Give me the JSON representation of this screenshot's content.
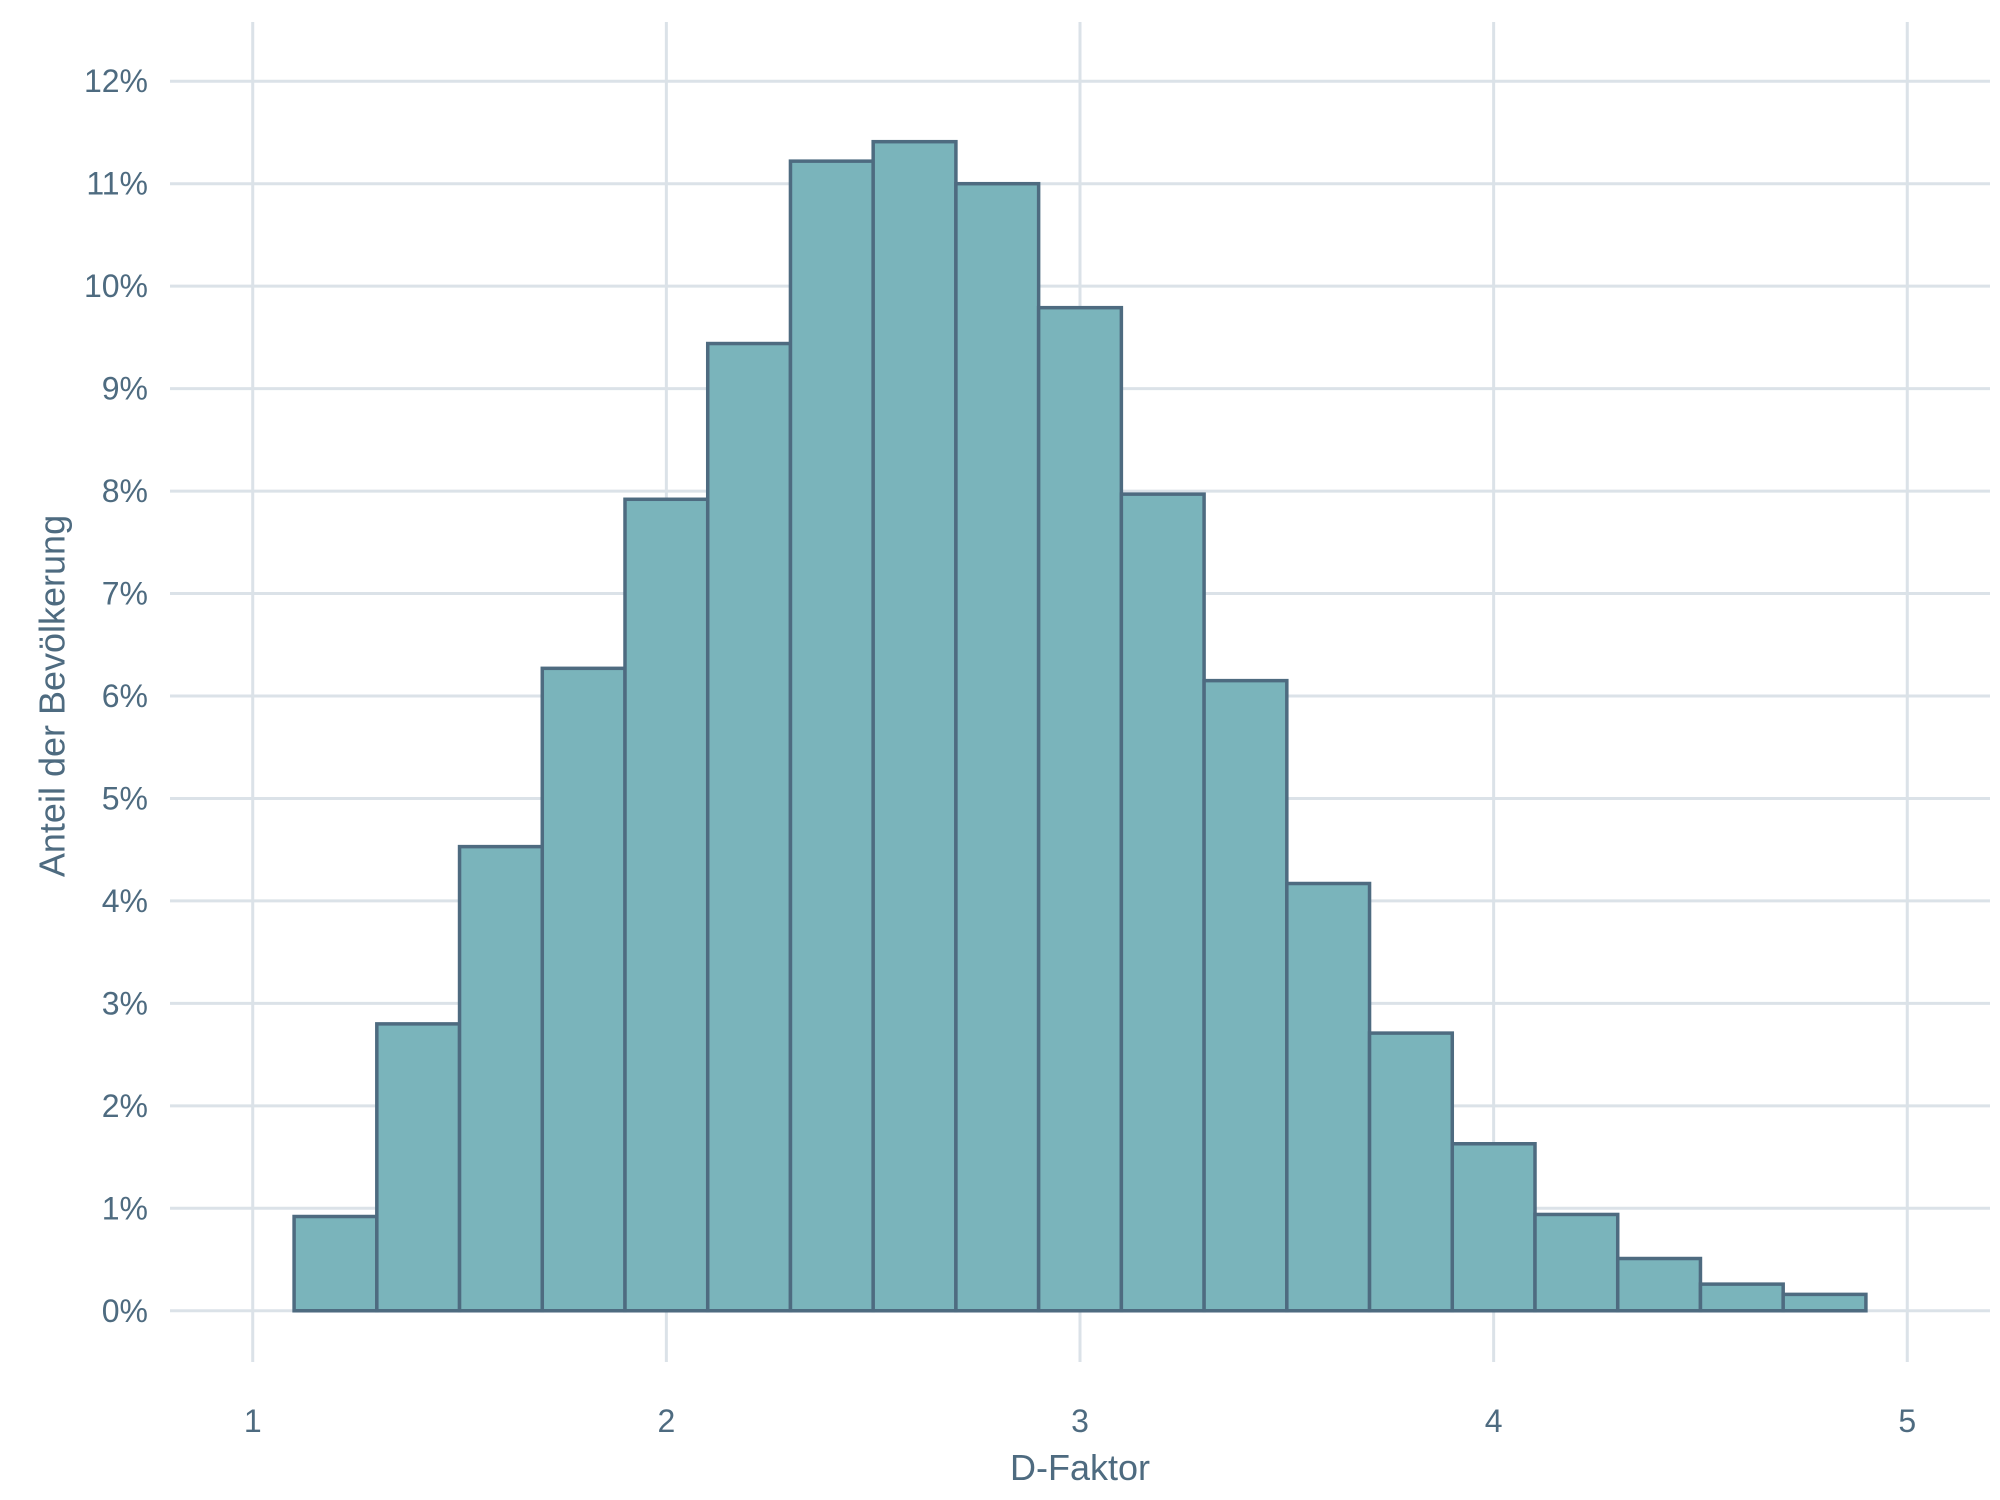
{
  "chart_data": {
    "type": "bar",
    "title": "",
    "xlabel": "D-Faktor",
    "ylabel": "Anteil der Bevölkerung",
    "xlim": [
      0.8,
      5.2
    ],
    "ylim": [
      -0.5,
      12.5
    ],
    "x_ticks": [
      1,
      2,
      3,
      4,
      5
    ],
    "x_tick_labels": [
      "1",
      "2",
      "3",
      "4",
      "5"
    ],
    "y_ticks": [
      0,
      1,
      2,
      3,
      4,
      5,
      6,
      7,
      8,
      9,
      10,
      11,
      12
    ],
    "y_tick_labels": [
      "0%",
      "1%",
      "2%",
      "3%",
      "4%",
      "5%",
      "6%",
      "7%",
      "8%",
      "9%",
      "10%",
      "11%",
      "12%"
    ],
    "bin_width": 0.2,
    "bin_starts": [
      1.1,
      1.3,
      1.5,
      1.7,
      1.9,
      2.1,
      2.3,
      2.5,
      2.7,
      2.9,
      3.1,
      3.3,
      3.5,
      3.7,
      3.9,
      4.1,
      4.3,
      4.5,
      4.7
    ],
    "values": [
      0.92,
      2.8,
      4.53,
      6.27,
      7.92,
      9.44,
      11.22,
      11.41,
      11.0,
      9.79,
      7.97,
      6.15,
      4.17,
      2.71,
      1.63,
      0.94,
      0.51,
      0.26,
      0.16
    ],
    "grid": true,
    "colors": {
      "bar_fill": "#7ab4bb",
      "bar_stroke": "#4e6b80",
      "grid": "#dbe2e8",
      "text": "#4e6b80"
    }
  }
}
